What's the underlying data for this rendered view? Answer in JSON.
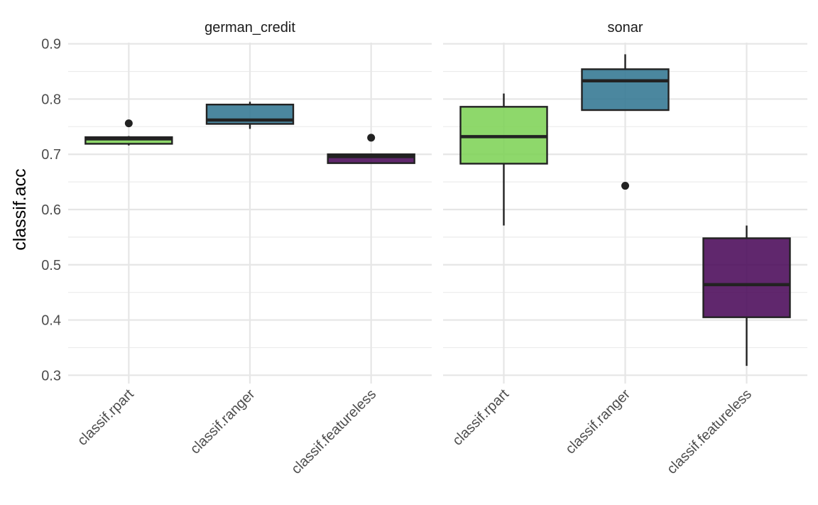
{
  "chart_data": {
    "type": "boxplot",
    "ylabel": "classif.acc",
    "xlabel": "",
    "ylim": [
      0.285,
      0.915
    ],
    "y_ticks": [
      0.3,
      0.4,
      0.5,
      0.6,
      0.7,
      0.8,
      0.9
    ],
    "y_tick_labels": [
      "0.3",
      "0.4",
      "0.5",
      "0.6",
      "0.7",
      "0.8",
      "0.9"
    ],
    "categories": [
      "classif.rpart",
      "classif.ranger",
      "classif.featureless"
    ],
    "grid": true,
    "legend": "none",
    "colors": {
      "classif.rpart": "#7ad151",
      "classif.ranger": "#2c728e",
      "classif.featureless": "#440154"
    },
    "panels": [
      {
        "title": "german_credit",
        "boxes": [
          {
            "learner": "classif.rpart",
            "lower_whisker": 0.716,
            "q1": 0.719,
            "median": 0.728,
            "q3": 0.731,
            "upper_whisker": 0.733,
            "outliers": [
              0.756
            ]
          },
          {
            "learner": "classif.ranger",
            "lower_whisker": 0.746,
            "q1": 0.755,
            "median": 0.762,
            "q3": 0.79,
            "upper_whisker": 0.795,
            "outliers": []
          },
          {
            "learner": "classif.featureless",
            "lower_whisker": 0.684,
            "q1": 0.684,
            "median": 0.696,
            "q3": 0.7,
            "upper_whisker": 0.7,
            "outliers": [
              0.73
            ]
          }
        ]
      },
      {
        "title": "sonar",
        "boxes": [
          {
            "learner": "classif.rpart",
            "lower_whisker": 0.571,
            "q1": 0.683,
            "median": 0.732,
            "q3": 0.786,
            "upper_whisker": 0.81,
            "outliers": []
          },
          {
            "learner": "classif.ranger",
            "lower_whisker": 0.78,
            "q1": 0.78,
            "median": 0.833,
            "q3": 0.854,
            "upper_whisker": 0.881,
            "outliers": [
              0.643
            ]
          },
          {
            "learner": "classif.featureless",
            "lower_whisker": 0.317,
            "q1": 0.405,
            "median": 0.464,
            "q3": 0.548,
            "upper_whisker": 0.571,
            "outliers": []
          }
        ]
      }
    ]
  }
}
